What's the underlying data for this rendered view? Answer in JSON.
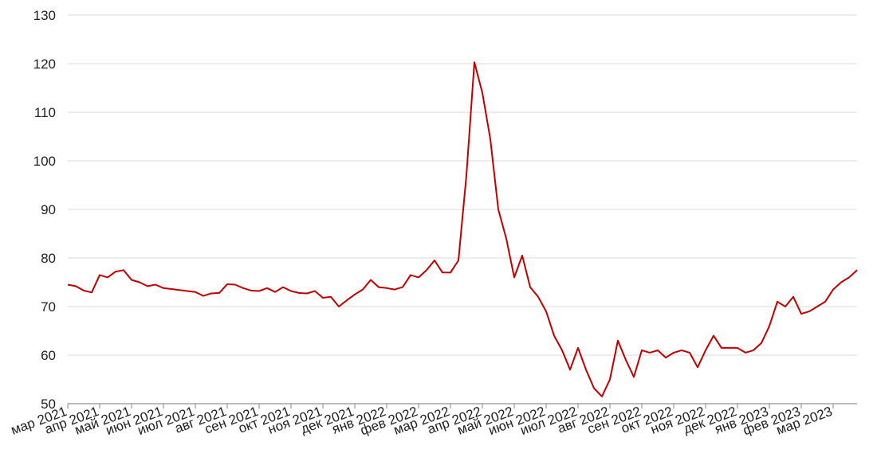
{
  "chart_data": {
    "type": "line",
    "categories": [
      "мар 2021",
      null,
      null,
      null,
      "апр 2021",
      null,
      null,
      null,
      "май 2021",
      null,
      null,
      null,
      "июн 2021",
      null,
      null,
      null,
      "июл 2021",
      null,
      null,
      null,
      "авг 2021",
      null,
      null,
      null,
      "сен 2021",
      null,
      null,
      null,
      "окт 2021",
      null,
      null,
      null,
      "ноя 2021",
      null,
      null,
      null,
      "дек 2021",
      null,
      null,
      null,
      "янв 2022",
      null,
      null,
      null,
      "фев 2022",
      null,
      null,
      null,
      "мар 2022",
      null,
      null,
      null,
      "апр 2022",
      null,
      null,
      null,
      "май 2022",
      null,
      null,
      null,
      "июн 2022",
      null,
      null,
      null,
      "июл 2022",
      null,
      null,
      null,
      "авг 2022",
      null,
      null,
      null,
      "сен 2022",
      null,
      null,
      null,
      "окт 2022",
      null,
      null,
      null,
      "ноя 2022",
      null,
      null,
      null,
      "дек 2022",
      null,
      null,
      null,
      "янв 2023",
      null,
      null,
      null,
      "фев 2023",
      null,
      null,
      null,
      "мар 2023",
      null,
      null,
      null
    ],
    "values": [
      74.5,
      74.2,
      73.3,
      72.9,
      76.5,
      76,
      77.2,
      77.5,
      75.5,
      75,
      74.2,
      74.5,
      73.8,
      73.6,
      73.4,
      73.2,
      73,
      72.2,
      72.7,
      72.8,
      74.6,
      74.5,
      73.8,
      73.3,
      73.2,
      73.8,
      73,
      74,
      73.2,
      72.8,
      72.7,
      73.2,
      71.8,
      72,
      70,
      71.3,
      72.5,
      73.5,
      75.5,
      74,
      73.8,
      73.5,
      74,
      76.5,
      76,
      77.5,
      79.5,
      77,
      77,
      79.5,
      97,
      120.3,
      114,
      104.5,
      90,
      84,
      76,
      80.5,
      74,
      72,
      69,
      64,
      61,
      57,
      61.5,
      57,
      53.2,
      51.5,
      55,
      63,
      59,
      55.5,
      61,
      60.5,
      61,
      59.5,
      60.5,
      61,
      60.5,
      57.5,
      61,
      64,
      61.5,
      61.5,
      61.5,
      60.5,
      61,
      62.5,
      66,
      71,
      70,
      72,
      68.5,
      69,
      70,
      71,
      73.5,
      75,
      76,
      77.5
    ],
    "color": "#c00000",
    "ylim": [
      50,
      130
    ],
    "yticks": [
      50,
      60,
      70,
      80,
      90,
      100,
      110,
      120,
      130
    ],
    "grid": true
  }
}
